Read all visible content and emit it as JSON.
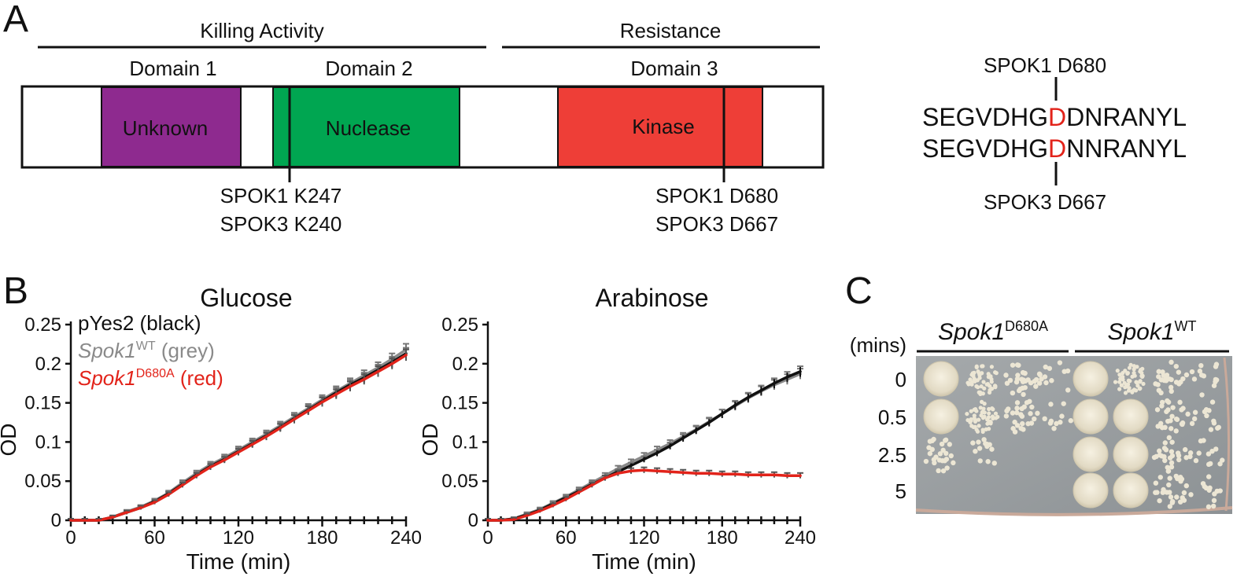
{
  "colors": {
    "black": "#111111",
    "grey": "#8a8a8a",
    "red": "#e2231a",
    "purple": "#8e2a8f",
    "green": "#00a651",
    "kinase_red": "#ee3e37"
  },
  "panel_a": {
    "label": "A",
    "killing_activity": "Killing Activity",
    "resistance": "Resistance",
    "domains": [
      {
        "header": "Domain 1",
        "name": "Unknown",
        "color": "#8e2a8f"
      },
      {
        "header": "Domain 2",
        "name": "Nuclease",
        "color": "#00a651"
      },
      {
        "header": "Domain 3",
        "name": "Kinase",
        "color": "#ee3e37"
      }
    ],
    "site_k": [
      "SPOK1 K247",
      "SPOK3 K240"
    ],
    "site_d": [
      "SPOK1 D680",
      "SPOK3 D667"
    ],
    "alignment": {
      "top_label": "SPOK1 D680",
      "bottom_label": "SPOK3 D667",
      "seq1": {
        "pre": "SEGVDHG",
        "hit": "D",
        "post": "DNRANYL"
      },
      "seq2": {
        "pre": "SEGVDHG",
        "hit": "D",
        "post": "NNRANYL"
      }
    }
  },
  "panel_b": {
    "label": "B",
    "legend": {
      "black": "pYes2 (black)",
      "grey_gene": "Spok1",
      "grey_sup": "WT",
      "grey_tail": " (grey)",
      "red_gene": "Spok1",
      "red_sup": "D680A",
      "red_tail": " (red)"
    }
  },
  "panel_c": {
    "label": "C",
    "mins_label": "(mins)",
    "strains": [
      {
        "gene": "Spok1",
        "sup": "D680A"
      },
      {
        "gene": "Spok1",
        "sup": "WT"
      }
    ],
    "times": [
      "0",
      "0.5",
      "2.5",
      "5"
    ]
  },
  "chart_data": [
    {
      "type": "line",
      "title": "Glucose",
      "xlabel": "Time (min)",
      "ylabel": "OD",
      "xlim": [
        0,
        240
      ],
      "ylim": [
        0,
        0.25
      ],
      "xticks": [
        "0",
        "60",
        "120",
        "180",
        "240"
      ],
      "yticks": [
        "0",
        "0.05",
        "0.1",
        "0.15",
        "0.2",
        "0.25"
      ],
      "x": [
        0,
        10,
        20,
        30,
        40,
        50,
        60,
        70,
        80,
        90,
        100,
        110,
        120,
        130,
        140,
        150,
        160,
        170,
        180,
        190,
        200,
        210,
        220,
        230,
        240
      ],
      "series": [
        {
          "name": "pYes2",
          "color": "#111111",
          "values": [
            0,
            0,
            0,
            0.004,
            0.01,
            0.016,
            0.024,
            0.034,
            0.046,
            0.058,
            0.069,
            0.078,
            0.088,
            0.098,
            0.108,
            0.119,
            0.13,
            0.141,
            0.152,
            0.163,
            0.173,
            0.182,
            0.192,
            0.202,
            0.213
          ]
        },
        {
          "name": "Spok1 WT",
          "color": "#8a8a8a",
          "values": [
            0,
            0,
            0,
            0.004,
            0.011,
            0.017,
            0.025,
            0.035,
            0.048,
            0.06,
            0.071,
            0.08,
            0.09,
            0.1,
            0.11,
            0.121,
            0.132,
            0.143,
            0.154,
            0.165,
            0.175,
            0.185,
            0.195,
            0.206,
            0.218
          ]
        },
        {
          "name": "Spok1 D680A",
          "color": "#e2231a",
          "values": [
            0,
            0,
            0,
            0.004,
            0.01,
            0.016,
            0.023,
            0.033,
            0.045,
            0.057,
            0.068,
            0.077,
            0.087,
            0.097,
            0.107,
            0.118,
            0.129,
            0.14,
            0.151,
            0.161,
            0.171,
            0.18,
            0.19,
            0.2,
            0.211
          ]
        }
      ]
    },
    {
      "type": "line",
      "title": "Arabinose",
      "xlabel": "Time (min)",
      "ylabel": "OD",
      "xlim": [
        0,
        240
      ],
      "ylim": [
        0,
        0.25
      ],
      "xticks": [
        "0",
        "60",
        "120",
        "180",
        "240"
      ],
      "yticks": [
        "0",
        "0.05",
        "0.1",
        "0.15",
        "0.2",
        "0.25"
      ],
      "x": [
        0,
        10,
        20,
        30,
        40,
        50,
        60,
        70,
        80,
        90,
        100,
        110,
        120,
        130,
        140,
        150,
        160,
        170,
        180,
        190,
        200,
        210,
        220,
        230,
        240
      ],
      "series": [
        {
          "name": "pYes2",
          "color": "#111111",
          "values": [
            0,
            0,
            0.002,
            0.007,
            0.013,
            0.021,
            0.029,
            0.037,
            0.046,
            0.054,
            0.062,
            0.07,
            0.078,
            0.086,
            0.095,
            0.105,
            0.115,
            0.125,
            0.136,
            0.147,
            0.157,
            0.166,
            0.175,
            0.183,
            0.19
          ]
        },
        {
          "name": "Spok1 WT",
          "color": "#8a8a8a",
          "values": [
            0,
            0,
            0.002,
            0.008,
            0.014,
            0.022,
            0.03,
            0.039,
            0.048,
            0.057,
            0.066,
            0.074,
            0.082,
            0.09,
            0.098,
            0.107,
            0.116,
            0.126,
            0.136,
            0.146,
            0.156,
            0.165,
            0.173,
            0.18,
            0.187
          ]
        },
        {
          "name": "Spok1 D680A",
          "color": "#e2231a",
          "values": [
            0,
            0,
            0.001,
            0.006,
            0.012,
            0.019,
            0.027,
            0.036,
            0.045,
            0.054,
            0.06,
            0.063,
            0.064,
            0.063,
            0.062,
            0.061,
            0.06,
            0.06,
            0.059,
            0.059,
            0.058,
            0.058,
            0.058,
            0.057,
            0.057
          ]
        }
      ]
    }
  ]
}
